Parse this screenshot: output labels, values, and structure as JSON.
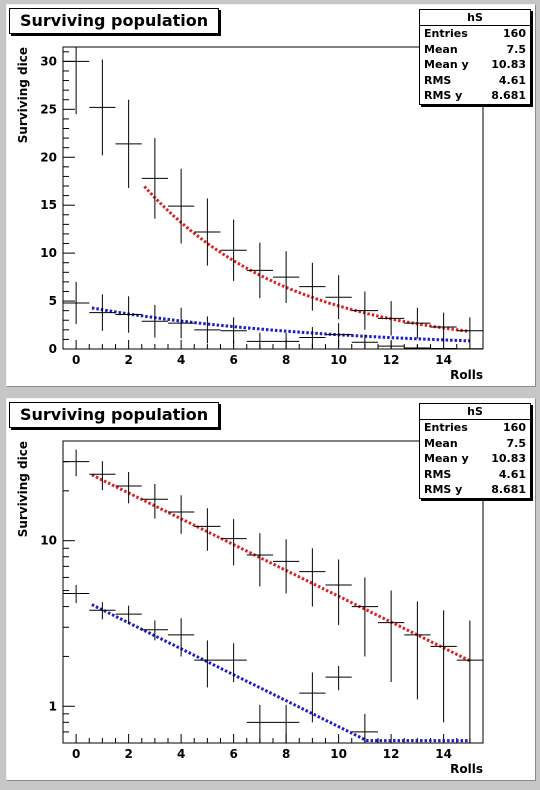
{
  "panels": [
    {
      "title": "Surviving population",
      "stats": {
        "name": "hS",
        "rows": [
          {
            "label": "Entries",
            "value": "160"
          },
          {
            "label": "Mean",
            "value": "7.5"
          },
          {
            "label": "Mean y",
            "value": "10.83"
          },
          {
            "label": "RMS",
            "value": "4.61"
          },
          {
            "label": "RMS y",
            "value": "8.681"
          }
        ]
      },
      "chart_data": {
        "type": "scatter",
        "scale": "linear",
        "xlabel": "Rolls",
        "ylabel": "Surviving dice",
        "xlim": [
          -0.5,
          15.5
        ],
        "ylim": [
          0,
          31.5
        ],
        "xticks": [
          0,
          2,
          4,
          6,
          8,
          10,
          12,
          14
        ],
        "yticks": [
          0,
          5,
          10,
          15,
          20,
          25,
          30
        ],
        "histogram": {
          "x": [
            0,
            1,
            2,
            3,
            4,
            5,
            6,
            7,
            8,
            9,
            10,
            11,
            12,
            13,
            14,
            15
          ],
          "y": [
            30,
            25.2,
            21.4,
            17.8,
            14.9,
            12.2,
            10.3,
            8.2,
            7.5,
            6.5,
            5.4,
            4.0,
            3.2,
            2.7,
            2.3,
            1.9
          ],
          "yerr": [
            5.5,
            5.0,
            4.6,
            4.2,
            3.9,
            3.5,
            3.2,
            2.9,
            2.7,
            2.5,
            2.3,
            2.0,
            1.8,
            1.6,
            1.5,
            1.4
          ]
        },
        "histogram2": {
          "x": [
            0,
            1,
            2,
            3,
            4,
            5,
            6,
            7,
            8,
            9,
            10,
            11,
            12,
            13,
            14,
            15
          ],
          "y": [
            4.8,
            3.8,
            3.6,
            2.9,
            2.7,
            2.0,
            1.9,
            0.8,
            0.8,
            1.2,
            1.5,
            0.7,
            0.3,
            0.1,
            0.05,
            0.02
          ],
          "yerr": [
            2.2,
            1.9,
            1.9,
            1.7,
            1.6,
            1.4,
            1.4,
            0.9,
            0.9,
            1.1,
            1.2,
            0.8,
            0.5,
            0.3,
            0.2,
            0.1
          ]
        },
        "fits": [
          {
            "color": "#e02020",
            "x_start": 2.6,
            "x_end": 15.0,
            "a": 27.05,
            "b": 0.1795,
            "floor": 0
          },
          {
            "color": "#1c1cc8",
            "x_start": 0.6,
            "x_end": 15.0,
            "a": 4.58,
            "b": 0.1125,
            "floor": 0
          }
        ],
        "grid": false,
        "legend": "top-right"
      }
    },
    {
      "title": "Surviving population",
      "stats": {
        "name": "hS",
        "rows": [
          {
            "label": "Entries",
            "value": "160"
          },
          {
            "label": "Mean",
            "value": "7.5"
          },
          {
            "label": "Mean y",
            "value": "10.83"
          },
          {
            "label": "RMS",
            "value": "4.61"
          },
          {
            "label": "RMS y",
            "value": "8.681"
          }
        ]
      },
      "chart_data": {
        "type": "scatter",
        "scale": "log",
        "xlabel": "Rolls",
        "ylabel": "Surviving dice",
        "xlim": [
          -0.5,
          15.5
        ],
        "ylim": [
          0.6,
          40
        ],
        "xticks": [
          0,
          2,
          4,
          6,
          8,
          10,
          12,
          14
        ],
        "yticks": [
          1,
          10
        ],
        "histogram": {
          "x": [
            0,
            1,
            2,
            3,
            4,
            5,
            6,
            7,
            8,
            9,
            10,
            11,
            12,
            13,
            14,
            15
          ],
          "y": [
            30,
            25.2,
            21.4,
            17.8,
            14.9,
            12.2,
            10.3,
            8.2,
            7.5,
            6.5,
            5.4,
            4.0,
            3.2,
            2.7,
            2.3,
            1.9
          ],
          "yerr": [
            5.5,
            5.0,
            4.6,
            4.2,
            3.9,
            3.5,
            3.2,
            2.9,
            2.7,
            2.5,
            2.3,
            2.0,
            1.8,
            1.6,
            1.5,
            1.4
          ]
        },
        "histogram2": {
          "x": [
            0,
            1,
            2,
            3,
            4,
            5,
            6,
            7,
            8,
            9,
            10,
            11
          ],
          "y": [
            4.8,
            3.8,
            3.6,
            2.9,
            2.7,
            1.9,
            1.9,
            0.8,
            0.8,
            1.2,
            1.5,
            0.7
          ],
          "yerr": [
            0.6,
            0.45,
            0.45,
            0.4,
            0.7,
            0.6,
            0.5,
            0.22,
            0.22,
            0.4,
            0.25,
            0.2
          ]
        },
        "fits": [
          {
            "color": "#e02020",
            "x_start": 0.6,
            "x_end": 15.0,
            "a": 27.8,
            "b": 0.1795,
            "floor": 0
          },
          {
            "color": "#1c1cc8",
            "x_start": 0.6,
            "x_end": 15.0,
            "a": 4.58,
            "b": 0.1805,
            "floor": 0.62
          }
        ],
        "grid": false,
        "legend": "top-right"
      }
    }
  ]
}
